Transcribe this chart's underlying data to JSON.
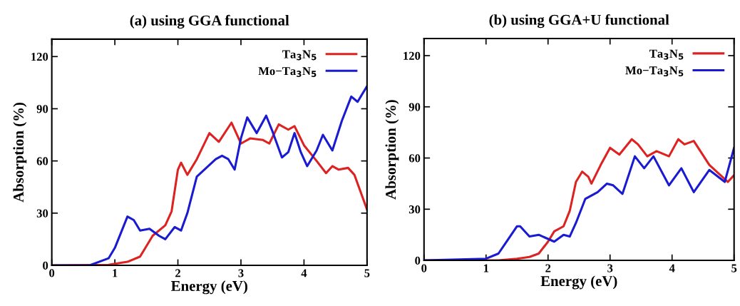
{
  "chart_data": [
    {
      "type": "line",
      "title": "(a) using GGA functional",
      "xlabel": "Energy (eV)",
      "ylabel": "Absorption (%)",
      "xlim": [
        0,
        5
      ],
      "ylim": [
        0,
        130
      ],
      "xticks": [
        0,
        1,
        2,
        3,
        4,
        5
      ],
      "yticks": [
        0,
        30,
        60,
        90,
        120
      ],
      "grid": false,
      "legend": "top right",
      "line_style": "solid",
      "series": [
        {
          "name": "Ta$_{3}$N$_{5}$",
          "color": "#dd2222",
          "x": [
            0,
            0.9,
            1.2,
            1.4,
            1.6,
            1.8,
            1.9,
            2.0,
            2.05,
            2.15,
            2.3,
            2.5,
            2.65,
            2.85,
            3.0,
            3.15,
            3.35,
            3.45,
            3.6,
            3.75,
            3.85,
            4.0,
            4.2,
            4.35,
            4.45,
            4.55,
            4.7,
            4.8,
            5.0
          ],
          "values": [
            0,
            0.3,
            2,
            5,
            17,
            23,
            31,
            55,
            59,
            52,
            61,
            76,
            71,
            82,
            70,
            73,
            72,
            70,
            81,
            78,
            80,
            69,
            60,
            53,
            57,
            55,
            56,
            52,
            32
          ]
        },
        {
          "name": "Mo−Ta$_{3}$N$_{5}$",
          "color": "#1a1ad0",
          "x": [
            0,
            0.6,
            0.9,
            1.0,
            1.2,
            1.3,
            1.4,
            1.55,
            1.7,
            1.8,
            1.95,
            2.05,
            2.15,
            2.3,
            2.45,
            2.6,
            2.7,
            2.8,
            2.9,
            3.0,
            3.1,
            3.25,
            3.4,
            3.5,
            3.65,
            3.75,
            3.85,
            3.95,
            4.05,
            4.2,
            4.3,
            4.45,
            4.6,
            4.75,
            4.85,
            5.0
          ],
          "values": [
            0,
            0,
            4,
            10,
            28,
            26,
            20,
            21,
            17,
            15,
            22,
            20,
            30,
            51,
            56,
            61,
            63,
            61,
            55,
            73,
            85,
            76,
            86,
            77,
            62,
            65,
            76,
            65,
            57,
            66,
            75,
            66,
            83,
            97,
            94,
            103
          ]
        }
      ]
    },
    {
      "type": "line",
      "title": "(b) using GGA+U functional",
      "xlabel": "Energy (eV)",
      "ylabel": "Absorption (%)",
      "xlim": [
        0,
        5
      ],
      "ylim": [
        0,
        130
      ],
      "xticks": [
        0,
        1,
        2,
        3,
        4,
        5
      ],
      "yticks": [
        0,
        30,
        60,
        90,
        120
      ],
      "grid": false,
      "legend": "top right",
      "line_style": "solid",
      "series": [
        {
          "name": "Ta$_{3}$N$_{5}$",
          "color": "#dd2222",
          "x": [
            0,
            1.2,
            1.5,
            1.7,
            1.85,
            2.0,
            2.1,
            2.25,
            2.35,
            2.45,
            2.55,
            2.65,
            2.7,
            2.85,
            3.0,
            3.15,
            3.35,
            3.45,
            3.6,
            3.75,
            3.95,
            4.1,
            4.2,
            4.35,
            4.6,
            4.75,
            4.9,
            5.0
          ],
          "values": [
            0,
            0,
            1,
            2,
            4,
            11,
            17,
            20,
            29,
            46,
            52,
            49,
            45,
            56,
            66,
            62,
            71,
            68,
            61,
            64,
            61,
            71,
            68,
            70,
            56,
            51,
            46,
            50
          ]
        },
        {
          "name": "Mo−Ta$_{3}$N$_{5}$",
          "color": "#1a1ad0",
          "x": [
            0,
            1.0,
            1.2,
            1.35,
            1.5,
            1.55,
            1.7,
            1.85,
            2.1,
            2.25,
            2.35,
            2.45,
            2.6,
            2.8,
            2.95,
            3.05,
            3.2,
            3.4,
            3.55,
            3.7,
            3.95,
            4.15,
            4.35,
            4.6,
            4.85,
            5.0
          ],
          "values": [
            0,
            1,
            4,
            12,
            20,
            20,
            14,
            15,
            11,
            15,
            14,
            22,
            36,
            40,
            45,
            44,
            39,
            61,
            54,
            61,
            44,
            54,
            40,
            53,
            46,
            66
          ]
        }
      ]
    }
  ]
}
